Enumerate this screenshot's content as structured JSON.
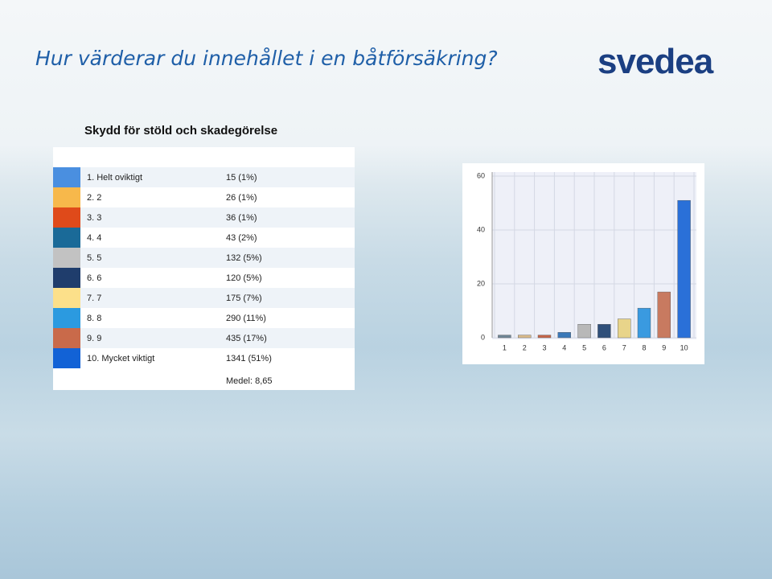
{
  "header": {
    "title": "Hur värderar du innehållet i en båtförsäkring?",
    "logo": "svedea"
  },
  "subtitle": "Skydd för stöld och skadegörelse",
  "table": {
    "rows": [
      {
        "label": "1. Helt oviktigt",
        "value": "15 (1%)",
        "color": "#4a8fe0"
      },
      {
        "label": "2. 2",
        "value": "26 (1%)",
        "color": "#f7b84b"
      },
      {
        "label": "3. 3",
        "value": "36 (1%)",
        "color": "#df4a1a"
      },
      {
        "label": "4. 4",
        "value": "43 (2%)",
        "color": "#1a6a98"
      },
      {
        "label": "5. 5",
        "value": "132 (5%)",
        "color": "#c2c2c2"
      },
      {
        "label": "6. 6",
        "value": "120 (5%)",
        "color": "#1f3d6c"
      },
      {
        "label": "7. 7",
        "value": "175 (7%)",
        "color": "#fce08a"
      },
      {
        "label": "8. 8",
        "value": "290 (11%)",
        "color": "#2b9ae0"
      },
      {
        "label": "9. 9",
        "value": "435 (17%)",
        "color": "#c96a4a"
      },
      {
        "label": "10. Mycket viktigt",
        "value": "1341 (51%)",
        "color": "#1262d6"
      }
    ],
    "footer": "Medel: 8,65"
  },
  "chart_data": {
    "type": "bar",
    "categories": [
      "1",
      "2",
      "3",
      "4",
      "5",
      "6",
      "7",
      "8",
      "9",
      "10"
    ],
    "values": [
      1,
      1,
      1,
      2,
      5,
      5,
      7,
      11,
      17,
      51
    ],
    "colors": [
      "#6f8596",
      "#d8b98a",
      "#c4654a",
      "#3a78b8",
      "#b8b8b8",
      "#2f4f7a",
      "#e8d48a",
      "#3a9ae0",
      "#c87a60",
      "#2a70d8"
    ],
    "ylim": [
      0,
      61.5
    ],
    "yticks": [
      0,
      20,
      40,
      60
    ],
    "grid": true
  }
}
